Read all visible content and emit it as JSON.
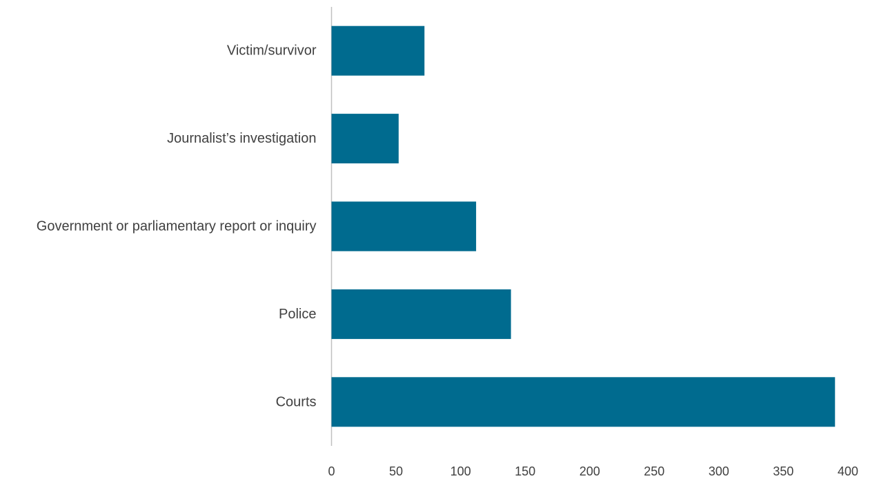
{
  "chart_data": {
    "type": "bar",
    "orientation": "horizontal",
    "categories": [
      "Victim/survivor",
      "Journalist’s investigation",
      "Government or parliamentary report or inquiry",
      "Police",
      "Courts"
    ],
    "values": [
      72,
      52,
      112,
      139,
      390
    ],
    "xlim": [
      0,
      400
    ],
    "x_ticks": [
      "0",
      "50",
      "100",
      "150",
      "200",
      "250",
      "300",
      "350",
      "400"
    ],
    "x_tick_values": [
      0,
      50,
      100,
      150,
      200,
      250,
      300,
      350,
      400
    ],
    "bar_color": "#006b8f",
    "axis_color": "#bfbfbf",
    "grid": false,
    "legend": "none"
  }
}
